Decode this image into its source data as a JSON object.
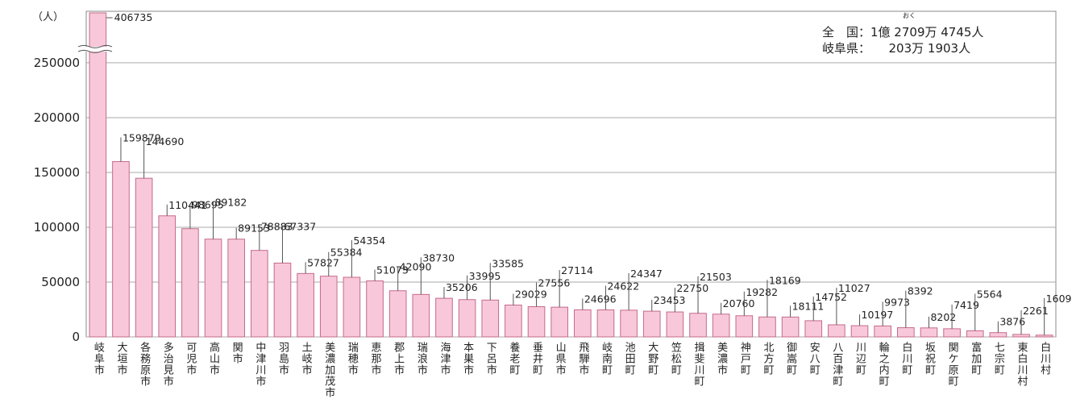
{
  "chart_data": {
    "type": "bar",
    "y_unit": "（人）",
    "annotations": [
      "全　国：1億 2709万 4745人",
      "おく",
      "岐阜県：　　203万 1903人"
    ],
    "categories": [
      "岐阜市",
      "大垣市",
      "各務原市",
      "多治見市",
      "可児市",
      "高山市",
      "関市",
      "中津川市",
      "羽島市",
      "土岐市",
      "美濃加茂市",
      "瑞穂市",
      "恵那市",
      "郡上市",
      "瑞浪市",
      "海津市",
      "本巣市",
      "下呂市",
      "養老町",
      "垂井町",
      "山県市",
      "飛騨市",
      "岐南町",
      "池田町",
      "大野町",
      "笠松町",
      "揖斐川町",
      "美濃市",
      "神戸町",
      "北方町",
      "御嵩町",
      "安八町",
      "八百津町",
      "川辺町",
      "輪之内町",
      "白川町",
      "坂祝町",
      "関ケ原町",
      "富加町",
      "七宗町",
      "東白川村",
      "白川村"
    ],
    "values": [
      406735,
      159879,
      144690,
      110441,
      98695,
      89182,
      89153,
      78883,
      67337,
      57827,
      55384,
      54354,
      51073,
      42090,
      38730,
      35206,
      33995,
      33585,
      29029,
      27556,
      27114,
      24696,
      24622,
      24347,
      23453,
      22750,
      21503,
      20760,
      19282,
      18169,
      18111,
      14752,
      11027,
      10197,
      9973,
      8392,
      8202,
      7419,
      5564,
      3876,
      2261,
      1609
    ],
    "color": "#f8c8da",
    "edge": "#c46a8a",
    "ylim": [
      0,
      297000
    ],
    "yticks": [
      0,
      50000,
      100000,
      150000,
      200000,
      250000
    ],
    "grid": true,
    "axis_break": true
  }
}
